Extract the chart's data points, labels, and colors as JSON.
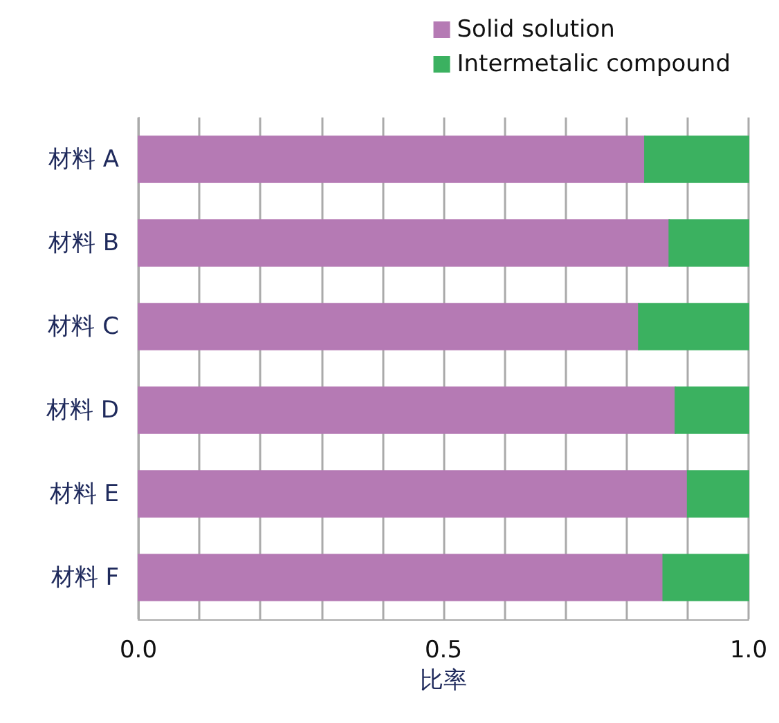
{
  "chart_data": {
    "type": "bar",
    "orientation": "horizontal",
    "stacked": true,
    "xlabel": "比率",
    "categories": [
      "材料 A",
      "材料 B",
      "材料 C",
      "材料 D",
      "材料 E",
      "材料 F"
    ],
    "series": [
      {
        "name": "Solid solution",
        "color": "#b57ab4",
        "values": [
          0.83,
          0.87,
          0.82,
          0.88,
          0.9,
          0.86
        ]
      },
      {
        "name": "Intermetalic compound",
        "color": "#3bb160",
        "values": [
          0.17,
          0.13,
          0.18,
          0.12,
          0.1,
          0.14
        ]
      }
    ],
    "xlim": [
      0,
      1
    ],
    "xticks": [
      {
        "value": 0,
        "label": "0.0"
      },
      {
        "value": 0.1,
        "label": null
      },
      {
        "value": 0.2,
        "label": null
      },
      {
        "value": 0.3,
        "label": null
      },
      {
        "value": 0.4,
        "label": null
      },
      {
        "value": 0.5,
        "label": "0.5"
      },
      {
        "value": 0.6,
        "label": null
      },
      {
        "value": 0.7,
        "label": null
      },
      {
        "value": 0.8,
        "label": null
      },
      {
        "value": 0.9,
        "label": null
      },
      {
        "value": 1,
        "label": "1.0"
      }
    ],
    "grid": "x",
    "legend": "top right"
  }
}
